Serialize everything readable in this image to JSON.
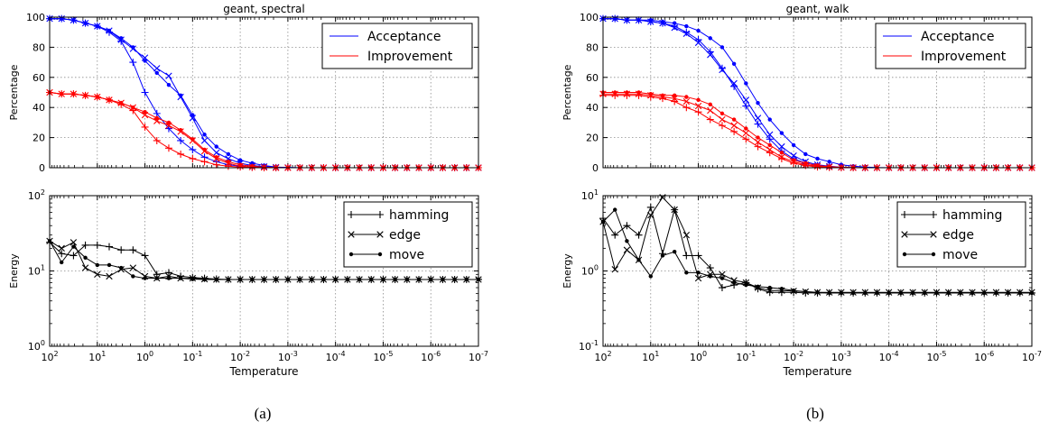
{
  "captions": [
    "(a)",
    "(b)"
  ],
  "colors": {
    "acceptance": "#0000ff",
    "improvement": "#ff0000",
    "energy": "#000000",
    "grid": "#8c8c8c"
  },
  "chart_data": [
    {
      "type": "line",
      "title": "geant, spectral",
      "xlabel": "",
      "ylabel": "Percentage",
      "x_scale": "log-reversed",
      "x_ticks": [
        "10^2",
        "10^1",
        "10^0",
        "10^-1",
        "10^-2",
        "10^-3",
        "10^-4",
        "10^-5",
        "10^-6",
        "10^-7"
      ],
      "ylim": [
        0,
        100
      ],
      "y_ticks": [
        0,
        20,
        40,
        60,
        80,
        100
      ],
      "grid": true,
      "legend_position": "top-right",
      "legend": [
        "Acceptance",
        "Improvement"
      ],
      "x": [
        100,
        56.2,
        31.6,
        17.8,
        10,
        5.62,
        3.16,
        1.78,
        1,
        0.562,
        0.316,
        0.178,
        0.1,
        0.0562,
        0.0316,
        0.0178,
        0.01,
        0.00562,
        0.00316,
        0.00178,
        0.001,
        0.000562,
        0.000316,
        0.000178,
        0.0001,
        5.62e-05,
        3.16e-05,
        1.78e-05,
        1e-05,
        5.62e-06,
        3.16e-06,
        1.78e-06,
        1e-06,
        5.62e-07,
        3.16e-07,
        1.78e-07,
        1e-07
      ],
      "series": [
        {
          "group": "Acceptance",
          "marker": "plus",
          "values": [
            99,
            99,
            98,
            96,
            94,
            90,
            84,
            70,
            50,
            36,
            26,
            18,
            12,
            7,
            4,
            2,
            1,
            0.5,
            0.3,
            0.1,
            0,
            0,
            0,
            0,
            0,
            0,
            0,
            0,
            0,
            0,
            0,
            0,
            0,
            0,
            0,
            0,
            0
          ]
        },
        {
          "group": "Acceptance",
          "marker": "cross",
          "values": [
            99,
            99,
            98,
            96,
            94,
            91,
            85,
            79,
            73,
            66,
            61,
            47,
            33,
            18,
            10,
            6,
            3,
            1.5,
            0.8,
            0.3,
            0.1,
            0,
            0,
            0,
            0,
            0,
            0,
            0,
            0,
            0,
            0,
            0,
            0,
            0,
            0,
            0,
            0
          ]
        },
        {
          "group": "Acceptance",
          "marker": "dot",
          "values": [
            99,
            99,
            98,
            96,
            94,
            91,
            86,
            80,
            71,
            63,
            55,
            48,
            35,
            22,
            14,
            9,
            5,
            3,
            1.5,
            0.5,
            0.2,
            0,
            0,
            0,
            0,
            0,
            0,
            0,
            0,
            0,
            0,
            0,
            0,
            0,
            0,
            0,
            0
          ]
        },
        {
          "group": "Improvement",
          "marker": "plus",
          "values": [
            50,
            49,
            49,
            48,
            47,
            45,
            42,
            38,
            27,
            18,
            13,
            9,
            6,
            4,
            2,
            1,
            0.5,
            0.2,
            0,
            0,
            0,
            0,
            0,
            0,
            0,
            0,
            0,
            0,
            0,
            0,
            0,
            0,
            0,
            0,
            0,
            0,
            0
          ]
        },
        {
          "group": "Improvement",
          "marker": "cross",
          "values": [
            50,
            49,
            49,
            48,
            47,
            45,
            43,
            40,
            35,
            31,
            28,
            24,
            18,
            11,
            6,
            3,
            1,
            0.5,
            0.2,
            0,
            0,
            0,
            0,
            0,
            0,
            0,
            0,
            0,
            0,
            0,
            0,
            0,
            0,
            0,
            0,
            0,
            0
          ]
        },
        {
          "group": "Improvement",
          "marker": "dot",
          "values": [
            50,
            49,
            49,
            48,
            47,
            45,
            43,
            40,
            37,
            33,
            30,
            25,
            19,
            12,
            7,
            4,
            2,
            1,
            0.3,
            0.1,
            0,
            0,
            0,
            0,
            0,
            0,
            0,
            0,
            0,
            0,
            0,
            0,
            0,
            0,
            0,
            0,
            0
          ]
        }
      ]
    },
    {
      "type": "line",
      "title": "",
      "xlabel": "Temperature",
      "ylabel": "Energy",
      "x_scale": "log-reversed",
      "y_scale": "log",
      "x_ticks": [
        "10^2",
        "10^1",
        "10^0",
        "10^-1",
        "10^-2",
        "10^-3",
        "10^-4",
        "10^-5",
        "10^-6",
        "10^-7"
      ],
      "y_ticks": [
        "10^0",
        "10^1",
        "10^2"
      ],
      "ylim": [
        1,
        100
      ],
      "grid": true,
      "legend_position": "top-right",
      "legend": [
        "hamming",
        "edge",
        "move"
      ],
      "x": [
        100,
        56.2,
        31.6,
        17.8,
        10,
        5.62,
        3.16,
        1.78,
        1,
        0.562,
        0.316,
        0.178,
        0.1,
        0.0562,
        0.0316,
        0.0178,
        0.01,
        0.00562,
        0.00316,
        0.00178,
        0.001,
        0.000562,
        0.000316,
        0.000178,
        0.0001,
        5.62e-05,
        3.16e-05,
        1.78e-05,
        1e-05,
        5.62e-06,
        3.16e-06,
        1.78e-06,
        1e-06,
        5.62e-07,
        3.16e-07,
        1.78e-07,
        1e-07
      ],
      "series": [
        {
          "name": "hamming",
          "marker": "plus",
          "values": [
            24,
            17,
            16,
            22,
            22,
            21,
            19,
            19,
            16,
            9,
            9.5,
            8.5,
            8.2,
            8,
            7.8,
            7.7,
            7.7,
            7.7,
            7.7,
            7.7,
            7.7,
            7.7,
            7.7,
            7.7,
            7.7,
            7.7,
            7.7,
            7.7,
            7.7,
            7.7,
            7.7,
            7.7,
            7.7,
            7.7,
            7.7,
            7.7,
            7.7
          ]
        },
        {
          "name": "edge",
          "marker": "cross",
          "values": [
            25,
            20,
            24,
            11,
            9,
            8.5,
            10.5,
            11,
            8.5,
            8,
            8.5,
            8,
            8,
            7.8,
            7.7,
            7.7,
            7.7,
            7.7,
            7.7,
            7.7,
            7.7,
            7.7,
            7.7,
            7.7,
            7.7,
            7.7,
            7.7,
            7.7,
            7.7,
            7.7,
            7.7,
            7.7,
            7.7,
            7.7,
            7.7,
            7.7,
            7.7
          ]
        },
        {
          "name": "move",
          "marker": "dot",
          "values": [
            25,
            13,
            21,
            15,
            12,
            12,
            11,
            8.5,
            8,
            8,
            8,
            8,
            7.8,
            7.7,
            7.7,
            7.7,
            7.7,
            7.7,
            7.7,
            7.7,
            7.7,
            7.7,
            7.7,
            7.7,
            7.7,
            7.7,
            7.7,
            7.7,
            7.7,
            7.7,
            7.7,
            7.7,
            7.7,
            7.7,
            7.7,
            7.7,
            7.7
          ]
        }
      ]
    },
    {
      "type": "line",
      "title": "geant, walk",
      "xlabel": "",
      "ylabel": "Percentage",
      "x_scale": "log-reversed",
      "x_ticks": [
        "10^2",
        "10^1",
        "10^0",
        "10^-1",
        "10^-2",
        "10^-3",
        "10^-4",
        "10^-5",
        "10^-6",
        "10^-7"
      ],
      "ylim": [
        0,
        100
      ],
      "y_ticks": [
        0,
        20,
        40,
        60,
        80,
        100
      ],
      "grid": true,
      "legend_position": "top-right",
      "legend": [
        "Acceptance",
        "Improvement"
      ],
      "x": [
        100,
        56.2,
        31.6,
        17.8,
        10,
        5.62,
        3.16,
        1.78,
        1,
        0.562,
        0.316,
        0.178,
        0.1,
        0.0562,
        0.0316,
        0.0178,
        0.01,
        0.00562,
        0.00316,
        0.00178,
        0.001,
        0.000562,
        0.000316,
        0.000178,
        0.0001,
        5.62e-05,
        3.16e-05,
        1.78e-05,
        1e-05,
        5.62e-06,
        3.16e-06,
        1.78e-06,
        1e-06,
        5.62e-07,
        3.16e-07,
        1.78e-07,
        1e-07
      ],
      "series": [
        {
          "group": "Acceptance",
          "marker": "plus",
          "values": [
            99,
            99,
            98,
            98,
            97,
            96,
            94,
            90,
            85,
            77,
            66,
            54,
            41,
            29,
            19,
            11,
            6,
            3,
            1.5,
            0.5,
            0.2,
            0,
            0,
            0,
            0,
            0,
            0,
            0,
            0,
            0,
            0,
            0,
            0,
            0,
            0,
            0,
            0
          ]
        },
        {
          "group": "Acceptance",
          "marker": "cross",
          "values": [
            99,
            99,
            98,
            98,
            97,
            96,
            93,
            89,
            83,
            75,
            65,
            56,
            45,
            33,
            22,
            14,
            8,
            4,
            2,
            1,
            0.3,
            0.1,
            0,
            0,
            0,
            0,
            0,
            0,
            0,
            0,
            0,
            0,
            0,
            0,
            0,
            0,
            0
          ]
        },
        {
          "group": "Acceptance",
          "marker": "dot",
          "values": [
            99,
            99,
            98,
            98,
            98,
            97,
            96,
            94,
            91,
            86,
            80,
            69,
            56,
            43,
            32,
            23,
            15,
            9,
            6,
            4,
            2,
            1,
            0.4,
            0.1,
            0,
            0,
            0,
            0,
            0,
            0,
            0,
            0,
            0,
            0,
            0,
            0,
            0
          ]
        },
        {
          "group": "Improvement",
          "marker": "plus",
          "values": [
            48,
            48,
            48,
            48,
            47,
            46,
            44,
            40,
            37,
            32,
            28,
            24,
            19,
            14,
            10,
            6,
            3,
            1.5,
            0.5,
            0.2,
            0,
            0,
            0,
            0,
            0,
            0,
            0,
            0,
            0,
            0,
            0,
            0,
            0,
            0,
            0,
            0,
            0
          ]
        },
        {
          "group": "Improvement",
          "marker": "cross",
          "values": [
            49,
            49,
            49,
            49,
            48,
            47,
            46,
            44,
            41,
            38,
            32,
            28,
            23,
            17,
            12,
            7,
            4,
            2,
            1,
            0.5,
            0.2,
            0,
            0,
            0,
            0,
            0,
            0,
            0,
            0,
            0,
            0,
            0,
            0,
            0,
            0,
            0,
            0
          ]
        },
        {
          "group": "Improvement",
          "marker": "dot",
          "values": [
            50,
            50,
            50,
            50,
            49,
            48,
            48,
            47,
            45,
            42,
            36,
            32,
            26,
            20,
            15,
            10,
            5,
            3,
            1.5,
            0.7,
            0.3,
            0.1,
            0,
            0,
            0,
            0,
            0,
            0,
            0,
            0,
            0,
            0,
            0,
            0,
            0,
            0,
            0
          ]
        }
      ]
    },
    {
      "type": "line",
      "title": "",
      "xlabel": "Temperature",
      "ylabel": "Energy",
      "x_scale": "log-reversed",
      "y_scale": "log",
      "x_ticks": [
        "10^2",
        "10^1",
        "10^0",
        "10^-1",
        "10^-2",
        "10^-3",
        "10^-4",
        "10^-5",
        "10^-6",
        "10^-7"
      ],
      "y_ticks": [
        "10^-1",
        "10^0",
        "10^1"
      ],
      "ylim": [
        0.1,
        10
      ],
      "grid": true,
      "legend_position": "top-right",
      "legend": [
        "hamming",
        "edge",
        "move"
      ],
      "x": [
        100,
        56.2,
        31.6,
        17.8,
        10,
        5.62,
        3.16,
        1.78,
        1,
        0.562,
        0.316,
        0.178,
        0.1,
        0.0562,
        0.0316,
        0.0178,
        0.01,
        0.00562,
        0.00316,
        0.00178,
        0.001,
        0.000562,
        0.000316,
        0.000178,
        0.0001,
        5.62e-05,
        3.16e-05,
        1.78e-05,
        1e-05,
        5.62e-06,
        3.16e-06,
        1.78e-06,
        1e-06,
        5.62e-07,
        3.16e-07,
        1.78e-07,
        1e-07
      ],
      "series": [
        {
          "name": "hamming",
          "marker": "plus",
          "values": [
            5,
            3,
            4,
            3,
            7,
            1.7,
            6.5,
            1.6,
            1.6,
            1.1,
            0.6,
            0.65,
            0.7,
            0.58,
            0.52,
            0.52,
            0.52,
            0.51,
            0.51,
            0.51,
            0.51,
            0.51,
            0.51,
            0.51,
            0.51,
            0.51,
            0.51,
            0.51,
            0.51,
            0.51,
            0.51,
            0.51,
            0.51,
            0.51,
            0.51,
            0.51,
            0.51
          ]
        },
        {
          "name": "edge",
          "marker": "cross",
          "values": [
            4.5,
            1.05,
            1.9,
            1.4,
            5.5,
            9.5,
            6.5,
            3,
            0.8,
            0.9,
            0.9,
            0.75,
            0.7,
            0.6,
            0.55,
            0.55,
            0.54,
            0.53,
            0.52,
            0.52,
            0.52,
            0.52,
            0.52,
            0.52,
            0.52,
            0.52,
            0.52,
            0.52,
            0.52,
            0.52,
            0.52,
            0.52,
            0.52,
            0.52,
            0.52,
            0.52,
            0.52
          ]
        },
        {
          "name": "move",
          "marker": "dot",
          "values": [
            4.5,
            6.5,
            2.5,
            1.4,
            0.85,
            1.6,
            1.8,
            0.95,
            0.95,
            0.85,
            0.8,
            0.7,
            0.65,
            0.62,
            0.6,
            0.58,
            0.55,
            0.53,
            0.52,
            0.51,
            0.51,
            0.51,
            0.51,
            0.51,
            0.51,
            0.51,
            0.51,
            0.51,
            0.51,
            0.51,
            0.51,
            0.51,
            0.51,
            0.51,
            0.51,
            0.51,
            0.51
          ]
        }
      ]
    }
  ]
}
